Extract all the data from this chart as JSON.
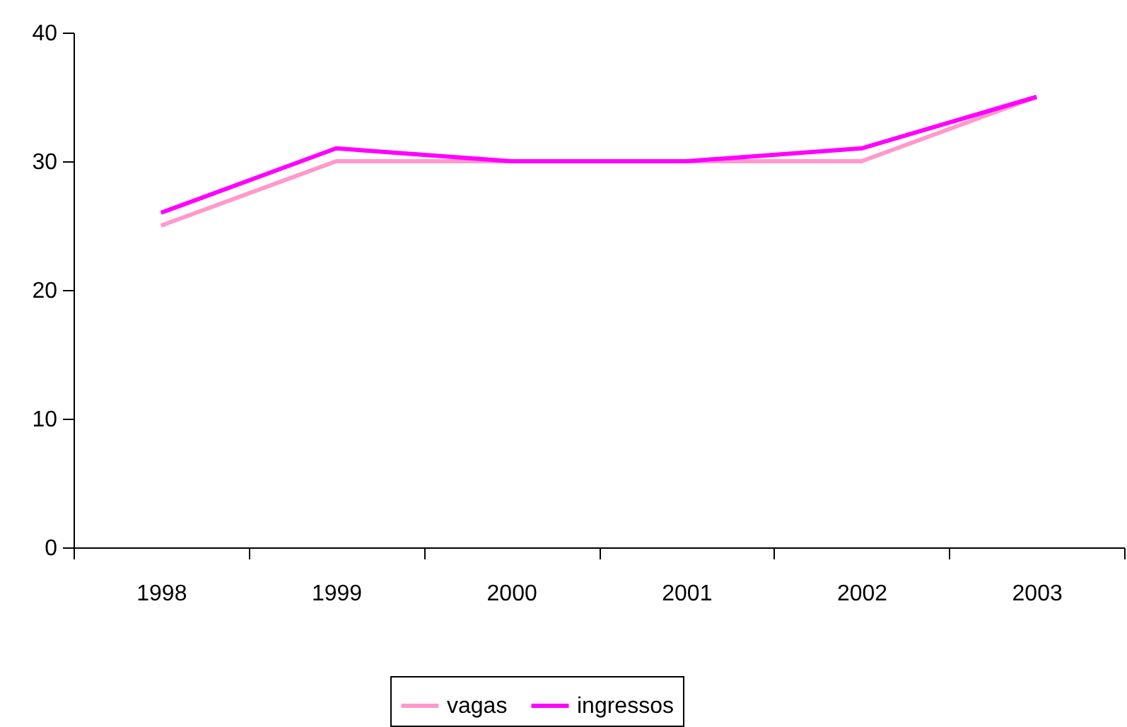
{
  "chart_data": {
    "type": "line",
    "categories": [
      "1998",
      "1999",
      "2000",
      "2001",
      "2002",
      "2003"
    ],
    "series": [
      {
        "name": "vagas",
        "color": "#ff99cc",
        "values": [
          25,
          30,
          30,
          30,
          30,
          35
        ]
      },
      {
        "name": "ingressos",
        "color": "#ff00ff",
        "values": [
          26,
          31,
          30,
          30,
          31,
          35
        ]
      }
    ],
    "ylim": [
      0,
      40
    ],
    "yticks": [
      0,
      10,
      20,
      30,
      40
    ],
    "grid": false,
    "legend": "bottom",
    "marker": "none",
    "line_style": "solid"
  }
}
